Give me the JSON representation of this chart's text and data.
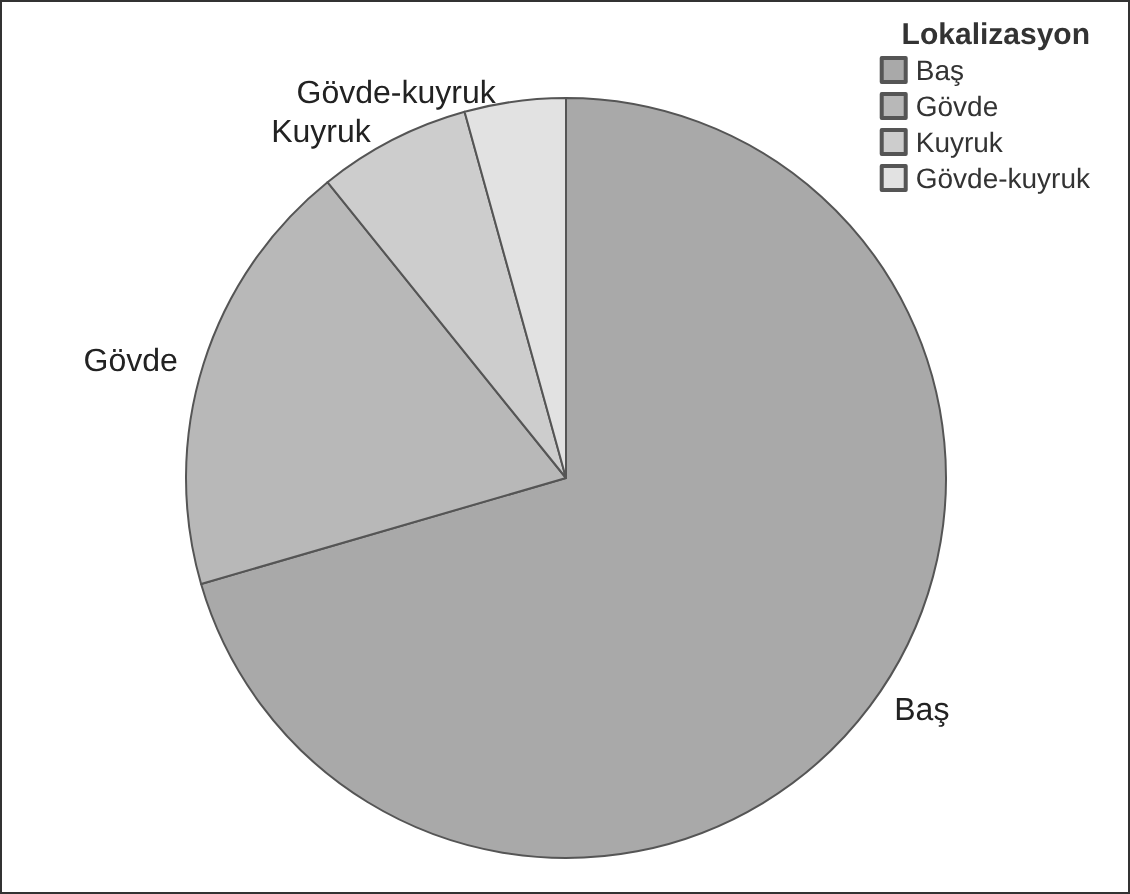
{
  "chart_data": {
    "type": "pie",
    "legend_title": "Lokalizasyon",
    "legend": "top right",
    "categories": [
      "Baş",
      "Gövde",
      "Kuyruk",
      "Gövde-kuyruk"
    ],
    "values": [
      70.5,
      18.7,
      6.5,
      4.3
    ],
    "colors": [
      "#a9a9a9",
      "#b8b8b8",
      "#cdcdcd",
      "#e2e2e2"
    ]
  }
}
